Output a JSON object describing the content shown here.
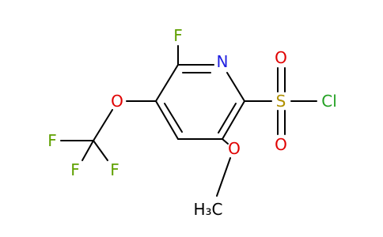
{
  "atoms": [
    {
      "label": "F"
    },
    {
      "label": "N"
    },
    {
      "label": "O"
    },
    {
      "label": "S"
    },
    {
      "label": "O"
    },
    {
      "label": "O"
    },
    {
      "label": "Cl"
    },
    {
      "label": "F"
    },
    {
      "label": "F"
    },
    {
      "label": "F"
    },
    {
      "label": "O"
    },
    {
      "label": "H₃C"
    }
  ]
}
